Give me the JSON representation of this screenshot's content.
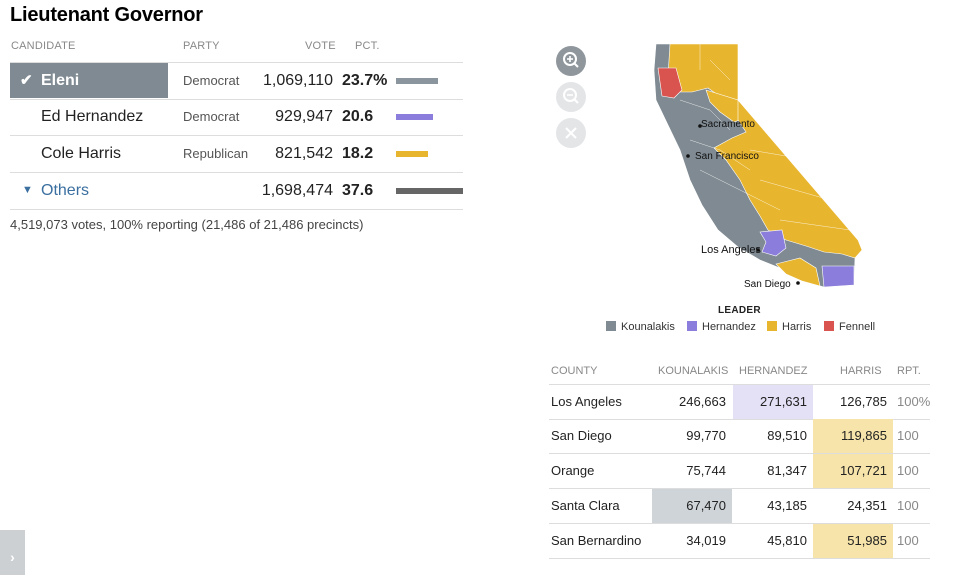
{
  "title": "Lieutenant Governor",
  "headers": {
    "candidate": "CANDIDATE",
    "party": "PARTY",
    "vote": "VOTE",
    "pct": "PCT."
  },
  "candidates": [
    {
      "name": "Eleni Kounalakis",
      "party": "Democrat",
      "votes": "1,069,110",
      "pct": "23.7%",
      "pct_value": 23.7,
      "color": "#8a959d",
      "winner": true
    },
    {
      "name": "Ed Hernandez",
      "party": "Democrat",
      "votes": "929,947",
      "pct": "20.6",
      "pct_value": 20.6,
      "color": "#8a7ddb",
      "winner": false
    },
    {
      "name": "Cole Harris",
      "party": "Republican",
      "votes": "821,542",
      "pct": "18.2",
      "pct_value": 18.2,
      "color": "#e8b52e",
      "winner": false
    },
    {
      "name": "Others",
      "party": "",
      "votes": "1,698,474",
      "pct": "37.6",
      "pct_value": 37.6,
      "color": "#666666",
      "winner": false
    }
  ],
  "summary": "4,519,073 votes, 100% reporting (21,486 of 21,486 precincts)",
  "map": {
    "cities": [
      "Sacramento",
      "San Francisco",
      "Los Angeles",
      "San Diego"
    ],
    "legend_title": "LEADER",
    "legend": [
      {
        "name": "Kounalakis",
        "color": "#7f8a92"
      },
      {
        "name": "Hernandez",
        "color": "#8a7ddb"
      },
      {
        "name": "Harris",
        "color": "#e8b52e"
      },
      {
        "name": "Fennell",
        "color": "#d9534f"
      }
    ]
  },
  "county_table": {
    "headers": {
      "county": "COUNTY",
      "kounalakis": "KOUNALAKIS",
      "hernandez": "HERNANDEZ",
      "harris": "HARRIS",
      "rpt": "RPT."
    },
    "rows": [
      {
        "county": "Los Angeles",
        "kounalakis": "246,663",
        "hernandez": "271,631",
        "harris": "126,785",
        "rpt": "100%",
        "leader": "hernandez"
      },
      {
        "county": "San Diego",
        "kounalakis": "99,770",
        "hernandez": "89,510",
        "harris": "119,865",
        "rpt": "100",
        "leader": "harris"
      },
      {
        "county": "Orange",
        "kounalakis": "75,744",
        "hernandez": "81,347",
        "harris": "107,721",
        "rpt": "100",
        "leader": "harris"
      },
      {
        "county": "Santa Clara",
        "kounalakis": "67,470",
        "hernandez": "43,185",
        "harris": "24,351",
        "rpt": "100",
        "leader": "kounalakis"
      },
      {
        "county": "San Bernardino",
        "kounalakis": "34,019",
        "hernandez": "45,810",
        "harris": "51,985",
        "rpt": "100",
        "leader": "harris"
      }
    ],
    "leader_colors": {
      "kounalakis": "#cfd4d8",
      "hernandez": "#e4e1f7",
      "harris": "#f7e4aa"
    }
  },
  "icons": {
    "zoom_in": "zoom-in-icon",
    "zoom_out": "zoom-out-icon",
    "reset": "close-icon",
    "expand": "chevron-right-icon",
    "winner": "check-icon",
    "expand_others": "triangle-down-icon"
  }
}
